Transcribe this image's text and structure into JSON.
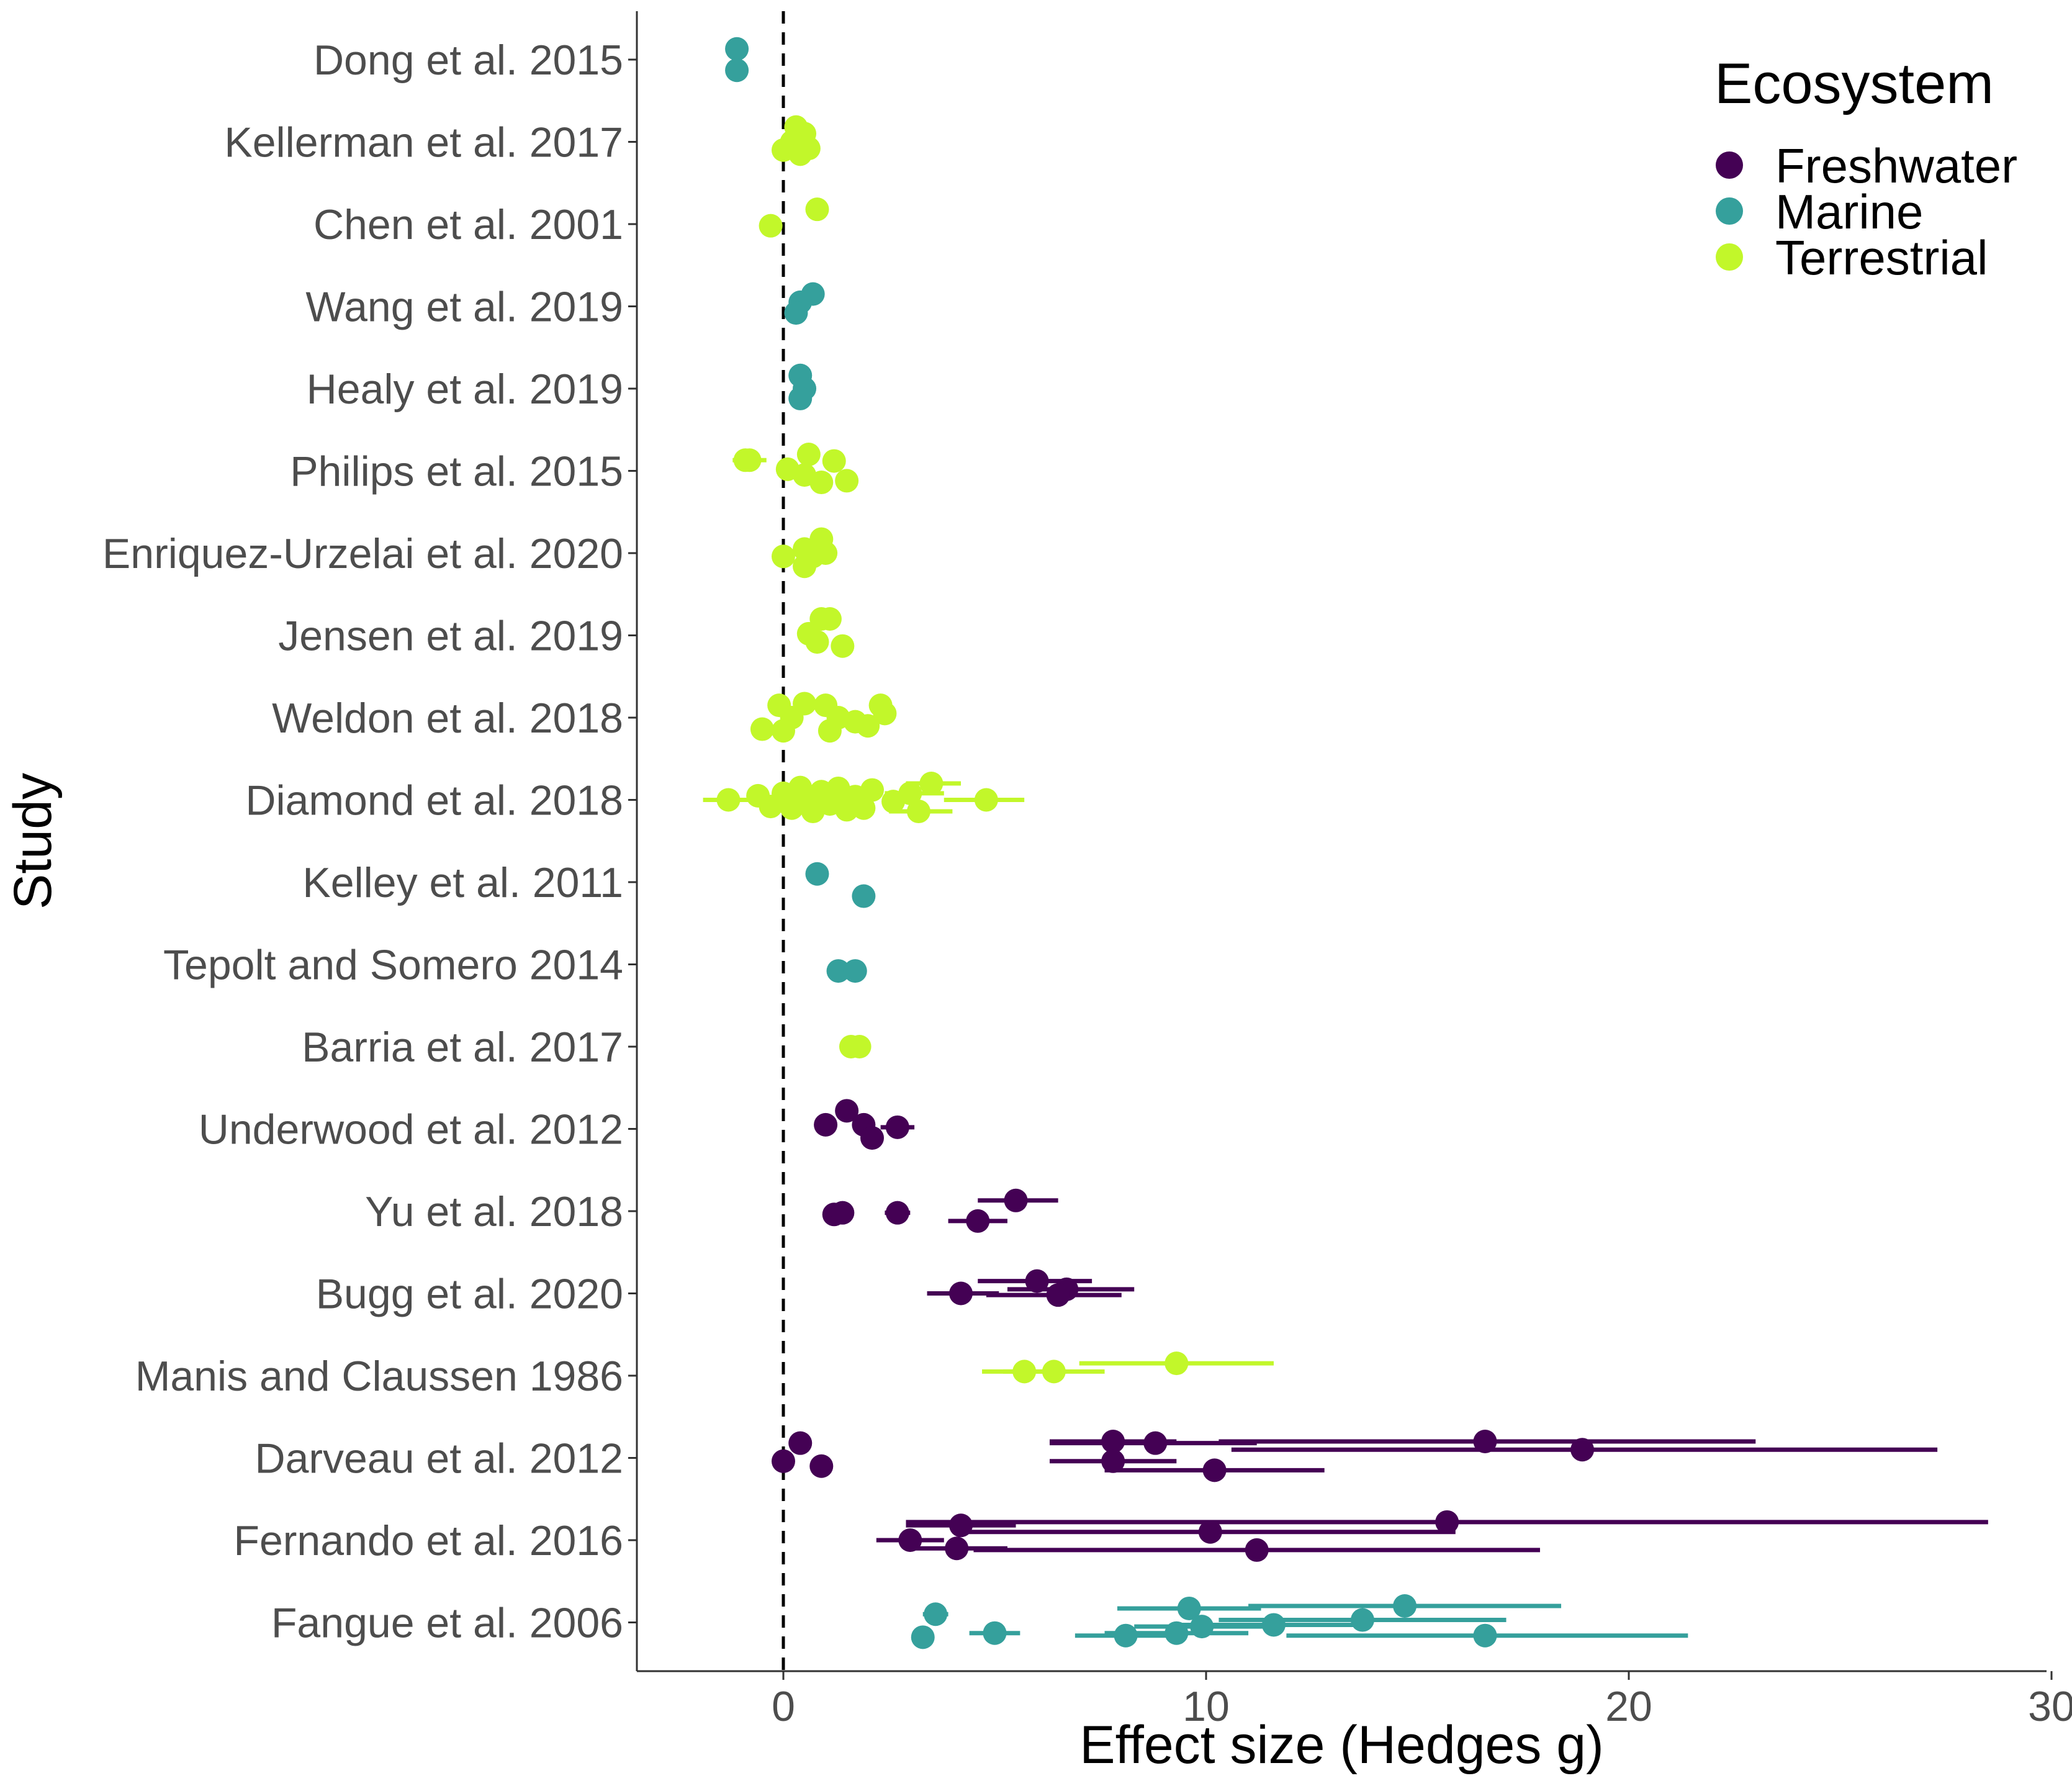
{
  "chart_data": {
    "type": "scatter",
    "xlabel": "Effect size (Hedges g)",
    "ylabel": "Study",
    "xlim": [
      -3.5,
      30
    ],
    "xticks": [
      0,
      10,
      20,
      30
    ],
    "grid": false,
    "reference_line": {
      "x": 0,
      "style": "dashed"
    },
    "legend": {
      "title": "Ecosystem",
      "position": "top-right",
      "entries": [
        {
          "name": "Freshwater",
          "color": "#440154"
        },
        {
          "name": "Marine",
          "color": "#35a09c"
        },
        {
          "name": "Terrestrial",
          "color": "#c2f72a"
        }
      ]
    },
    "studies": [
      "Dong et al. 2015",
      "Kellerman et al. 2017",
      "Chen et al. 2001",
      "Wang et al. 2019",
      "Healy et al. 2019",
      "Philips et al. 2015",
      "Enriquez-Urzelai et al. 2020",
      "Jensen et al. 2019",
      "Weldon et al. 2018",
      "Diamond et al. 2018",
      "Kelley et al. 2011",
      "Tepolt and Somero 2014",
      "Barria et al. 2017",
      "Underwood et al. 2012",
      "Yu et al. 2018",
      "Bugg et al. 2020",
      "Manis and Claussen 1986",
      "Darveau et al. 2012",
      "Fernando et al. 2016",
      "Fangue et al. 2006"
    ],
    "points": [
      {
        "study": 0,
        "eco": "Marine",
        "g": -1.1,
        "j": -0.13
      },
      {
        "study": 0,
        "eco": "Marine",
        "g": -1.1,
        "j": 0.13
      },
      {
        "study": 1,
        "eco": "Terrestrial",
        "g": 0.3,
        "j": -0.18
      },
      {
        "study": 1,
        "eco": "Terrestrial",
        "g": 0.5,
        "j": -0.1
      },
      {
        "study": 1,
        "eco": "Terrestrial",
        "g": 0.2,
        "j": 0.0
      },
      {
        "study": 1,
        "eco": "Terrestrial",
        "g": 0.0,
        "j": 0.1
      },
      {
        "study": 1,
        "eco": "Terrestrial",
        "g": 0.4,
        "j": 0.15
      },
      {
        "study": 1,
        "eco": "Terrestrial",
        "g": 0.6,
        "j": 0.08
      },
      {
        "study": 2,
        "eco": "Terrestrial",
        "g": 0.8,
        "j": -0.18
      },
      {
        "study": 2,
        "eco": "Terrestrial",
        "g": -0.3,
        "j": 0.02
      },
      {
        "study": 3,
        "eco": "Marine",
        "g": 0.7,
        "j": -0.15
      },
      {
        "study": 3,
        "eco": "Marine",
        "g": 0.4,
        "j": -0.05
      },
      {
        "study": 3,
        "eco": "Marine",
        "g": 0.3,
        "j": 0.08
      },
      {
        "study": 4,
        "eco": "Marine",
        "g": 0.4,
        "j": -0.16
      },
      {
        "study": 4,
        "eco": "Marine",
        "g": 0.5,
        "j": 0.0
      },
      {
        "study": 4,
        "eco": "Marine",
        "g": 0.4,
        "j": 0.12
      },
      {
        "study": 5,
        "eco": "Terrestrial",
        "g": -0.9,
        "j": -0.13
      },
      {
        "study": 5,
        "eco": "Terrestrial",
        "g": -0.8,
        "j": -0.13,
        "lo": -1.2,
        "hi": -0.4
      },
      {
        "study": 5,
        "eco": "Terrestrial",
        "g": 0.6,
        "j": -0.2
      },
      {
        "study": 5,
        "eco": "Terrestrial",
        "g": 1.2,
        "j": -0.12
      },
      {
        "study": 5,
        "eco": "Terrestrial",
        "g": 0.1,
        "j": -0.02
      },
      {
        "study": 5,
        "eco": "Terrestrial",
        "g": 0.5,
        "j": 0.05
      },
      {
        "study": 5,
        "eco": "Terrestrial",
        "g": 0.9,
        "j": 0.14
      },
      {
        "study": 5,
        "eco": "Terrestrial",
        "g": 1.5,
        "j": 0.12
      },
      {
        "study": 6,
        "eco": "Terrestrial",
        "g": 0.9,
        "j": -0.17
      },
      {
        "study": 6,
        "eco": "Terrestrial",
        "g": 0.5,
        "j": -0.05
      },
      {
        "study": 6,
        "eco": "Terrestrial",
        "g": 0.0,
        "j": 0.04
      },
      {
        "study": 6,
        "eco": "Terrestrial",
        "g": 0.7,
        "j": 0.04
      },
      {
        "study": 6,
        "eco": "Terrestrial",
        "g": 1.0,
        "j": 0.0
      },
      {
        "study": 6,
        "eco": "Terrestrial",
        "g": 0.5,
        "j": 0.16
      },
      {
        "study": 7,
        "eco": "Terrestrial",
        "g": 0.9,
        "j": -0.2
      },
      {
        "study": 7,
        "eco": "Terrestrial",
        "g": 1.1,
        "j": -0.2
      },
      {
        "study": 7,
        "eco": "Terrestrial",
        "g": 0.6,
        "j": -0.02
      },
      {
        "study": 7,
        "eco": "Terrestrial",
        "g": 0.8,
        "j": 0.08
      },
      {
        "study": 7,
        "eco": "Terrestrial",
        "g": 1.4,
        "j": 0.13
      },
      {
        "study": 8,
        "eco": "Terrestrial",
        "g": -0.1,
        "j": -0.15
      },
      {
        "study": 8,
        "eco": "Terrestrial",
        "g": 0.5,
        "j": -0.17
      },
      {
        "study": 8,
        "eco": "Terrestrial",
        "g": 1.0,
        "j": -0.15
      },
      {
        "study": 8,
        "eco": "Terrestrial",
        "g": 2.3,
        "j": -0.15
      },
      {
        "study": 8,
        "eco": "Terrestrial",
        "g": 2.4,
        "j": -0.05
      },
      {
        "study": 8,
        "eco": "Terrestrial",
        "g": 0.2,
        "j": 0.0
      },
      {
        "study": 8,
        "eco": "Terrestrial",
        "g": 1.3,
        "j": 0.0
      },
      {
        "study": 8,
        "eco": "Terrestrial",
        "g": 1.7,
        "j": 0.05
      },
      {
        "study": 8,
        "eco": "Terrestrial",
        "g": -0.5,
        "j": 0.14
      },
      {
        "study": 8,
        "eco": "Terrestrial",
        "g": 0.0,
        "j": 0.16
      },
      {
        "study": 8,
        "eco": "Terrestrial",
        "g": 1.1,
        "j": 0.16
      },
      {
        "study": 8,
        "eco": "Terrestrial",
        "g": 2.0,
        "j": 0.1
      },
      {
        "study": 9,
        "eco": "Terrestrial",
        "g": -1.3,
        "j": 0.0,
        "lo": -1.9,
        "hi": -0.6
      },
      {
        "study": 9,
        "eco": "Terrestrial",
        "g": -0.6,
        "j": -0.05
      },
      {
        "study": 9,
        "eco": "Terrestrial",
        "g": -0.3,
        "j": 0.08
      },
      {
        "study": 9,
        "eco": "Terrestrial",
        "g": 0.0,
        "j": -0.08
      },
      {
        "study": 9,
        "eco": "Terrestrial",
        "g": 0.2,
        "j": 0.1
      },
      {
        "study": 9,
        "eco": "Terrestrial",
        "g": 0.4,
        "j": -0.15
      },
      {
        "study": 9,
        "eco": "Terrestrial",
        "g": 0.5,
        "j": 0.02
      },
      {
        "study": 9,
        "eco": "Terrestrial",
        "g": 0.7,
        "j": 0.14
      },
      {
        "study": 9,
        "eco": "Terrestrial",
        "g": 0.9,
        "j": -0.1
      },
      {
        "study": 9,
        "eco": "Terrestrial",
        "g": 1.1,
        "j": 0.05
      },
      {
        "study": 9,
        "eco": "Terrestrial",
        "g": 1.3,
        "j": -0.14
      },
      {
        "study": 9,
        "eco": "Terrestrial",
        "g": 1.5,
        "j": 0.12
      },
      {
        "study": 9,
        "eco": "Terrestrial",
        "g": 1.7,
        "j": -0.04
      },
      {
        "study": 9,
        "eco": "Terrestrial",
        "g": 1.9,
        "j": 0.1
      },
      {
        "study": 9,
        "eco": "Terrestrial",
        "g": 2.1,
        "j": -0.12
      },
      {
        "study": 9,
        "eco": "Terrestrial",
        "g": 2.6,
        "j": 0.02
      },
      {
        "study": 9,
        "eco": "Terrestrial",
        "g": 3.0,
        "j": -0.08,
        "lo": 2.4,
        "hi": 3.8
      },
      {
        "study": 9,
        "eco": "Terrestrial",
        "g": 3.2,
        "j": 0.14,
        "lo": 2.5,
        "hi": 4.0
      },
      {
        "study": 9,
        "eco": "Terrestrial",
        "g": 3.5,
        "j": -0.2,
        "lo": 2.9,
        "hi": 4.2
      },
      {
        "study": 9,
        "eco": "Terrestrial",
        "g": 4.8,
        "j": 0.0,
        "lo": 3.8,
        "hi": 5.7
      },
      {
        "study": 10,
        "eco": "Marine",
        "g": 0.8,
        "j": -0.1
      },
      {
        "study": 10,
        "eco": "Marine",
        "g": 1.9,
        "j": 0.17
      },
      {
        "study": 11,
        "eco": "Marine",
        "g": 1.3,
        "j": 0.08
      },
      {
        "study": 11,
        "eco": "Marine",
        "g": 1.7,
        "j": 0.08
      },
      {
        "study": 12,
        "eco": "Terrestrial",
        "g": 1.6,
        "j": 0.0
      },
      {
        "study": 12,
        "eco": "Terrestrial",
        "g": 1.8,
        "j": 0.0
      },
      {
        "study": 13,
        "eco": "Freshwater",
        "g": 1.5,
        "j": -0.22
      },
      {
        "study": 13,
        "eco": "Freshwater",
        "g": 1.0,
        "j": -0.05
      },
      {
        "study": 13,
        "eco": "Freshwater",
        "g": 1.9,
        "j": -0.05
      },
      {
        "study": 13,
        "eco": "Freshwater",
        "g": 2.7,
        "j": -0.02,
        "lo": 2.3,
        "hi": 3.1
      },
      {
        "study": 13,
        "eco": "Freshwater",
        "g": 2.1,
        "j": 0.11
      },
      {
        "study": 14,
        "eco": "Freshwater",
        "g": 5.5,
        "j": -0.13,
        "lo": 4.6,
        "hi": 6.5
      },
      {
        "study": 14,
        "eco": "Freshwater",
        "g": 1.2,
        "j": 0.04
      },
      {
        "study": 14,
        "eco": "Freshwater",
        "g": 1.4,
        "j": 0.02
      },
      {
        "study": 14,
        "eco": "Freshwater",
        "g": 2.7,
        "j": 0.02,
        "lo": 2.4,
        "hi": 3.0
      },
      {
        "study": 14,
        "eco": "Freshwater",
        "g": 4.6,
        "j": 0.12,
        "lo": 3.9,
        "hi": 5.3
      },
      {
        "study": 15,
        "eco": "Freshwater",
        "g": 6.0,
        "j": -0.15,
        "lo": 4.6,
        "hi": 7.3
      },
      {
        "study": 15,
        "eco": "Freshwater",
        "g": 6.7,
        "j": -0.05,
        "lo": 5.3,
        "hi": 8.3
      },
      {
        "study": 15,
        "eco": "Freshwater",
        "g": 4.2,
        "j": 0.0,
        "lo": 3.4,
        "hi": 5.1
      },
      {
        "study": 15,
        "eco": "Freshwater",
        "g": 6.5,
        "j": 0.02,
        "lo": 4.8,
        "hi": 8.0
      },
      {
        "study": 16,
        "eco": "Terrestrial",
        "g": 9.3,
        "j": -0.15,
        "lo": 7.0,
        "hi": 11.6
      },
      {
        "study": 16,
        "eco": "Terrestrial",
        "g": 5.7,
        "j": -0.05,
        "lo": 4.7,
        "hi": 6.7
      },
      {
        "study": 16,
        "eco": "Terrestrial",
        "g": 6.4,
        "j": -0.05,
        "lo": 5.2,
        "hi": 7.6
      },
      {
        "study": 17,
        "eco": "Freshwater",
        "g": 7.8,
        "j": -0.2,
        "lo": 6.3,
        "hi": 9.3
      },
      {
        "study": 17,
        "eco": "Freshwater",
        "g": 8.8,
        "j": -0.18,
        "lo": 6.3,
        "hi": 11.2
      },
      {
        "study": 17,
        "eco": "Freshwater",
        "g": 16.6,
        "j": -0.2,
        "lo": 10.3,
        "hi": 23.0
      },
      {
        "study": 17,
        "eco": "Freshwater",
        "g": 18.9,
        "j": -0.1,
        "lo": 10.6,
        "hi": 27.3
      },
      {
        "study": 17,
        "eco": "Freshwater",
        "g": 7.8,
        "j": 0.04,
        "lo": 6.3,
        "hi": 9.3
      },
      {
        "study": 17,
        "eco": "Freshwater",
        "g": 10.2,
        "j": 0.15,
        "lo": 7.6,
        "hi": 12.8
      },
      {
        "study": 17,
        "eco": "Freshwater",
        "g": 0.4,
        "j": -0.18
      },
      {
        "study": 17,
        "eco": "Freshwater",
        "g": 0.0,
        "j": 0.04
      },
      {
        "study": 17,
        "eco": "Freshwater",
        "g": 0.9,
        "j": 0.1
      },
      {
        "study": 18,
        "eco": "Freshwater",
        "g": 15.7,
        "j": -0.22,
        "lo": 2.9,
        "hi": 28.5
      },
      {
        "study": 18,
        "eco": "Freshwater",
        "g": 4.2,
        "j": -0.18,
        "lo": 2.9,
        "hi": 5.5
      },
      {
        "study": 18,
        "eco": "Freshwater",
        "g": 10.1,
        "j": -0.1,
        "lo": 4.3,
        "hi": 15.9
      },
      {
        "study": 18,
        "eco": "Freshwater",
        "g": 3.0,
        "j": 0.0,
        "lo": 2.2,
        "hi": 3.8
      },
      {
        "study": 18,
        "eco": "Freshwater",
        "g": 4.1,
        "j": 0.1,
        "lo": 3.0,
        "hi": 5.3
      },
      {
        "study": 18,
        "eco": "Freshwater",
        "g": 11.2,
        "j": 0.12,
        "lo": 4.5,
        "hi": 17.9
      },
      {
        "study": 19,
        "eco": "Marine",
        "g": 14.7,
        "j": -0.2,
        "lo": 11.0,
        "hi": 18.4
      },
      {
        "study": 19,
        "eco": "Marine",
        "g": 9.6,
        "j": -0.17,
        "lo": 7.9,
        "hi": 11.3
      },
      {
        "study": 19,
        "eco": "Marine",
        "g": 3.6,
        "j": -0.1,
        "lo": 3.3,
        "hi": 3.9
      },
      {
        "study": 19,
        "eco": "Marine",
        "g": 13.7,
        "j": -0.03,
        "lo": 10.3,
        "hi": 17.1
      },
      {
        "study": 19,
        "eco": "Marine",
        "g": 11.6,
        "j": 0.03,
        "lo": 9.3,
        "hi": 13.9
      },
      {
        "study": 19,
        "eco": "Marine",
        "g": 9.9,
        "j": 0.05,
        "lo": 8.3,
        "hi": 11.5
      },
      {
        "study": 19,
        "eco": "Marine",
        "g": 5.0,
        "j": 0.13,
        "lo": 4.4,
        "hi": 5.6
      },
      {
        "study": 19,
        "eco": "Marine",
        "g": 9.3,
        "j": 0.13,
        "lo": 7.6,
        "hi": 11.0
      },
      {
        "study": 19,
        "eco": "Marine",
        "g": 8.1,
        "j": 0.16,
        "lo": 6.9,
        "hi": 9.3
      },
      {
        "study": 19,
        "eco": "Marine",
        "g": 16.6,
        "j": 0.16,
        "lo": 11.9,
        "hi": 21.4
      },
      {
        "study": 19,
        "eco": "Marine",
        "g": 3.3,
        "j": 0.18
      }
    ]
  }
}
